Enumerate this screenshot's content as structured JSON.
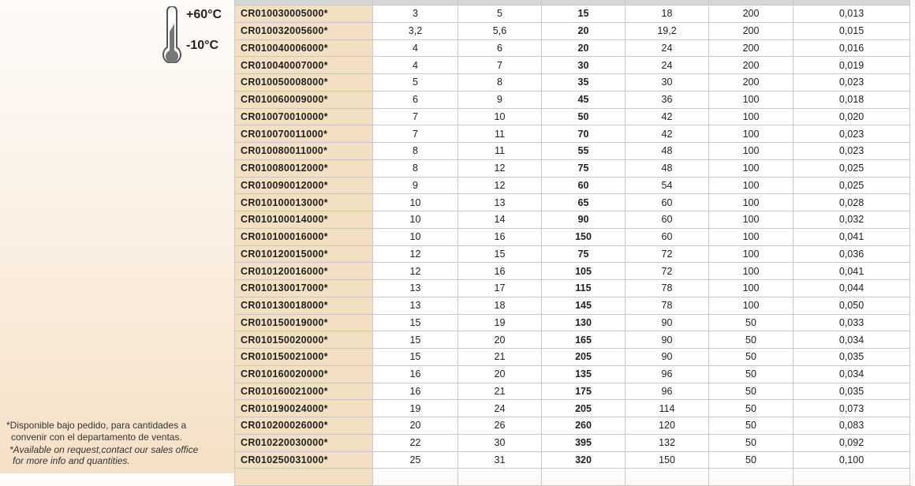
{
  "temperature": {
    "max": "+60°C",
    "min": "-10°C"
  },
  "notes": {
    "es_1": "*Disponible bajo pedido, para cantidades a",
    "es_2": "convenir con el departamento de ventas.",
    "en_1": "*Available on request,contact our sales office",
    "en_2": "for more info and quantities."
  },
  "table": {
    "rows": [
      [
        "CR010030005000*",
        "3",
        "5",
        "15",
        "18",
        "200",
        "0,013"
      ],
      [
        "CR010032005600*",
        "3,2",
        "5,6",
        "20",
        "19,2",
        "200",
        "0,015"
      ],
      [
        "CR010040006000*",
        "4",
        "6",
        "20",
        "24",
        "200",
        "0,016"
      ],
      [
        "CR010040007000*",
        "4",
        "7",
        "30",
        "24",
        "200",
        "0,019"
      ],
      [
        "CR010050008000*",
        "5",
        "8",
        "35",
        "30",
        "200",
        "0,023"
      ],
      [
        "CR010060009000*",
        "6",
        "9",
        "45",
        "36",
        "100",
        "0,018"
      ],
      [
        "CR010070010000*",
        "7",
        "10",
        "50",
        "42",
        "100",
        "0,020"
      ],
      [
        "CR010070011000*",
        "7",
        "11",
        "70",
        "42",
        "100",
        "0,023"
      ],
      [
        "CR010080011000*",
        "8",
        "11",
        "55",
        "48",
        "100",
        "0,023"
      ],
      [
        "CR010080012000*",
        "8",
        "12",
        "75",
        "48",
        "100",
        "0,025"
      ],
      [
        "CR010090012000*",
        "9",
        "12",
        "60",
        "54",
        "100",
        "0,025"
      ],
      [
        "CR010100013000*",
        "10",
        "13",
        "65",
        "60",
        "100",
        "0,028"
      ],
      [
        "CR010100014000*",
        "10",
        "14",
        "90",
        "60",
        "100",
        "0,032"
      ],
      [
        "CR010100016000*",
        "10",
        "16",
        "150",
        "60",
        "100",
        "0,041"
      ],
      [
        "CR010120015000*",
        "12",
        "15",
        "75",
        "72",
        "100",
        "0,036"
      ],
      [
        "CR010120016000*",
        "12",
        "16",
        "105",
        "72",
        "100",
        "0,041"
      ],
      [
        "CR010130017000*",
        "13",
        "17",
        "115",
        "78",
        "100",
        "0,044"
      ],
      [
        "CR010130018000*",
        "13",
        "18",
        "145",
        "78",
        "100",
        "0,050"
      ],
      [
        "CR010150019000*",
        "15",
        "19",
        "130",
        "90",
        "50",
        "0,033"
      ],
      [
        "CR010150020000*",
        "15",
        "20",
        "165",
        "90",
        "50",
        "0,034"
      ],
      [
        "CR010150021000*",
        "15",
        "21",
        "205",
        "90",
        "50",
        "0,035"
      ],
      [
        "CR010160020000*",
        "16",
        "20",
        "135",
        "96",
        "50",
        "0,034"
      ],
      [
        "CR010160021000*",
        "16",
        "21",
        "175",
        "96",
        "50",
        "0,035"
      ],
      [
        "CR010190024000*",
        "19",
        "24",
        "205",
        "114",
        "50",
        "0,073"
      ],
      [
        "CR010200026000*",
        "20",
        "26",
        "260",
        "120",
        "50",
        "0,083"
      ],
      [
        "CR010220030000*",
        "22",
        "30",
        "395",
        "132",
        "50",
        "0,092"
      ],
      [
        "CR010250031000*",
        "25",
        "31",
        "320",
        "150",
        "50",
        "0,100"
      ]
    ]
  }
}
